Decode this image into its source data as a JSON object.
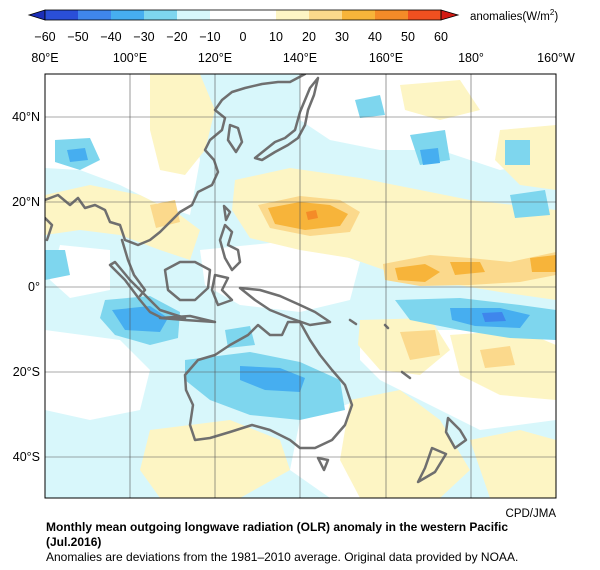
{
  "colorbar": {
    "ticks": [
      "−60",
      "−50",
      "−40",
      "−30",
      "−20",
      "−10",
      "0",
      "10",
      "20",
      "30",
      "40",
      "50",
      "60"
    ],
    "colors": [
      "#2a4fd8",
      "#3f86ec",
      "#46aef0",
      "#7ed6ee",
      "#d6f8fb",
      "#ffffff",
      "#ffffff",
      "#fdf5c4",
      "#fbd98c",
      "#f7b43a",
      "#f48b28",
      "#ef5020"
    ],
    "units_text": "anomalies(W/m",
    "units_sup": "2",
    "units_close": ")"
  },
  "map": {
    "lon_labels": [
      "80°E",
      "100°E",
      "120°E",
      "140°E",
      "160°E",
      "180°",
      "160°W"
    ],
    "lat_labels": [
      "40°N",
      "20°N",
      "0°",
      "20°S",
      "40°S"
    ],
    "credit": "CPD/JMA"
  },
  "caption": {
    "title": "Monthly mean outgoing longwave radiation (OLR) anomaly in the western Pacific",
    "period": "(Jul.2016)",
    "note": "Anomalies are deviations from the 1981–2010 average. Original data provided by NOAA."
  }
}
